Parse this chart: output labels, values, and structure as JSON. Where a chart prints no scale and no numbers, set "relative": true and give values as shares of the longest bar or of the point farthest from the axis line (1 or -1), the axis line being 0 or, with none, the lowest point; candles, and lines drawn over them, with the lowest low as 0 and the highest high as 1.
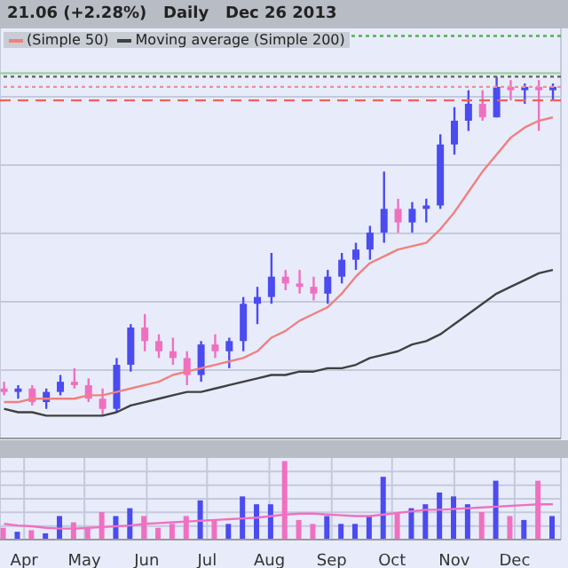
{
  "chart_data": [
    {
      "type": "candlestick",
      "title": "21.06 (+2.28%)   Daily   Dec 26 2013",
      "relative": true,
      "legend": "top left",
      "grid": true,
      "tick_labels": false,
      "xlim": [
        "2013-03-20",
        "2013-12-24"
      ],
      "xticks": [
        {
          "value": "2013-04-01",
          "label": null
        },
        {
          "value": "2013-05-01",
          "label": null
        },
        {
          "value": "2013-06-01",
          "label": null
        },
        {
          "value": "2013-07-01",
          "label": null
        },
        {
          "value": "2013-08-01",
          "label": null
        },
        {
          "value": "2013-09-01",
          "label": null
        },
        {
          "value": "2013-10-01",
          "label": null
        },
        {
          "value": "2013-11-01",
          "label": null
        },
        {
          "value": "2013-12-01",
          "label": null
        }
      ],
      "x": [
        "2013-03-22",
        "2013-03-29",
        "2013-04-05",
        "2013-04-12",
        "2013-04-19",
        "2013-04-26",
        "2013-05-03",
        "2013-05-10",
        "2013-05-17",
        "2013-05-24",
        "2013-05-31",
        "2013-06-07",
        "2013-06-14",
        "2013-06-21",
        "2013-06-28",
        "2013-07-05",
        "2013-07-12",
        "2013-07-19",
        "2013-07-26",
        "2013-08-02",
        "2013-08-09",
        "2013-08-16",
        "2013-08-23",
        "2013-08-30",
        "2013-09-06",
        "2013-09-13",
        "2013-09-20",
        "2013-09-27",
        "2013-10-04",
        "2013-10-11",
        "2013-10-18",
        "2013-10-25",
        "2013-11-01",
        "2013-11-08",
        "2013-11-15",
        "2013-11-22",
        "2013-11-29",
        "2013-12-06",
        "2013-12-13",
        "2013-12-20"
      ],
      "ohlc": [
        [
          0.08,
          0.1,
          0.06,
          0.07
        ],
        [
          0.07,
          0.09,
          0.05,
          0.08
        ],
        [
          0.08,
          0.09,
          0.03,
          0.04
        ],
        [
          0.04,
          0.08,
          0.02,
          0.07
        ],
        [
          0.07,
          0.12,
          0.06,
          0.1
        ],
        [
          0.1,
          0.14,
          0.08,
          0.09
        ],
        [
          0.09,
          0.11,
          0.04,
          0.05
        ],
        [
          0.05,
          0.08,
          0,
          0.02
        ],
        [
          0.02,
          0.17,
          0.01,
          0.15
        ],
        [
          0.15,
          0.27,
          0.13,
          0.26
        ],
        [
          0.26,
          0.3,
          0.19,
          0.22
        ],
        [
          0.22,
          0.24,
          0.17,
          0.19
        ],
        [
          0.19,
          0.23,
          0.15,
          0.17
        ],
        [
          0.17,
          0.19,
          0.09,
          0.12
        ],
        [
          0.12,
          0.22,
          0.1,
          0.21
        ],
        [
          0.21,
          0.24,
          0.17,
          0.19
        ],
        [
          0.19,
          0.23,
          0.14,
          0.22
        ],
        [
          0.22,
          0.35,
          0.19,
          0.33
        ],
        [
          0.33,
          0.38,
          0.27,
          0.35
        ],
        [
          0.35,
          0.48,
          0.33,
          0.41
        ],
        [
          0.41,
          0.43,
          0.37,
          0.39
        ],
        [
          0.39,
          0.43,
          0.36,
          0.38
        ],
        [
          0.38,
          0.41,
          0.34,
          0.36
        ],
        [
          0.36,
          0.43,
          0.33,
          0.41
        ],
        [
          0.41,
          0.48,
          0.39,
          0.46
        ],
        [
          0.46,
          0.51,
          0.43,
          0.49
        ],
        [
          0.49,
          0.56,
          0.46,
          0.54
        ],
        [
          0.54,
          0.72,
          0.51,
          0.61
        ],
        [
          0.61,
          0.64,
          0.54,
          0.57
        ],
        [
          0.57,
          0.63,
          0.54,
          0.61
        ],
        [
          0.61,
          0.64,
          0.57,
          0.62
        ],
        [
          0.62,
          0.83,
          0.61,
          0.8
        ],
        [
          0.8,
          0.91,
          0.77,
          0.87
        ],
        [
          0.87,
          0.96,
          0.84,
          0.92
        ],
        [
          0.92,
          0.96,
          0.87,
          0.88
        ],
        [
          0.88,
          1,
          0.88,
          0.97
        ],
        [
          0.97,
          0.99,
          0.93,
          0.96
        ],
        [
          0.96,
          0.98,
          0.92,
          0.97
        ],
        [
          0.97,
          0.99,
          0.84,
          0.96
        ],
        [
          0.96,
          0.98,
          0.93,
          0.97
        ]
      ],
      "colors": [
        "#f070c0",
        "#4b4bf0",
        "#f070c0",
        "#4b4bf0",
        "#4b4bf0",
        "#f070c0",
        "#f070c0",
        "#f070c0",
        "#4b4bf0",
        "#4b4bf0",
        "#f070c0",
        "#f070c0",
        "#f070c0",
        "#f070c0",
        "#4b4bf0",
        "#f070c0",
        "#4b4bf0",
        "#4b4bf0",
        "#4b4bf0",
        "#4b4bf0",
        "#f070c0",
        "#f070c0",
        "#f070c0",
        "#4b4bf0",
        "#4b4bf0",
        "#4b4bf0",
        "#4b4bf0",
        "#4b4bf0",
        "#f070c0",
        "#4b4bf0",
        "#4b4bf0",
        "#4b4bf0",
        "#4b4bf0",
        "#4b4bf0",
        "#f070c0",
        "#4b4bf0",
        "#f070c0",
        "#4b4bf0",
        "#f070c0",
        "#4b4bf0"
      ],
      "series": [
        {
          "type": "line",
          "name": "(Simple 50)",
          "color": "#f08080",
          "values": [
            0.04,
            0.04,
            0.05,
            0.05,
            0.05,
            0.05,
            0.06,
            0.06,
            0.07,
            0.08,
            0.09,
            0.1,
            0.12,
            0.13,
            0.14,
            0.15,
            0.16,
            0.17,
            0.19,
            0.23,
            0.25,
            0.28,
            0.3,
            0.32,
            0.36,
            0.41,
            0.45,
            0.47,
            0.49,
            0.5,
            0.51,
            0.55,
            0.6,
            0.66,
            0.72,
            0.77,
            0.82,
            0.85,
            0.87,
            0.88
          ]
        },
        {
          "type": "line",
          "name": "Moving average (Simple 200)",
          "color": "#404040",
          "values": [
            0.02,
            0.01,
            0.01,
            0,
            0,
            0,
            0,
            0,
            0.01,
            0.03,
            0.04,
            0.05,
            0.06,
            0.07,
            0.07,
            0.08,
            0.09,
            0.1,
            0.11,
            0.12,
            0.12,
            0.13,
            0.13,
            0.14,
            0.14,
            0.15,
            0.17,
            0.18,
            0.19,
            0.21,
            0.22,
            0.24,
            0.27,
            0.3,
            0.33,
            0.36,
            0.38,
            0.4,
            0.42,
            0.43
          ]
        }
      ],
      "ref_lines": [
        {
          "axis": "y",
          "value": 1.12,
          "color": "#50b050",
          "line_style": "dotted"
        },
        {
          "axis": "y",
          "value": 1.01,
          "color": "#a0d0a0",
          "line_style": "solid"
        },
        {
          "axis": "y",
          "value": 1.0,
          "color": "#606060",
          "line_style": "dotted"
        },
        {
          "axis": "y",
          "value": 0.97,
          "color": "#f09090",
          "line_style": "dotted"
        },
        {
          "axis": "y",
          "value": 0.93,
          "color": "#f06060",
          "line_style": "dashed"
        }
      ]
    },
    {
      "type": "bar",
      "relative": true,
      "grid": true,
      "tick_labels": "x",
      "xlim": [
        "2013-03-20",
        "2013-12-24"
      ],
      "xticks": [
        {
          "value": "2013-04-01",
          "label": "Apr"
        },
        {
          "value": "2013-05-01",
          "label": "May"
        },
        {
          "value": "2013-06-01",
          "label": "Jun"
        },
        {
          "value": "2013-07-01",
          "label": "Jul"
        },
        {
          "value": "2013-08-01",
          "label": "Aug"
        },
        {
          "value": "2013-09-01",
          "label": "Sep"
        },
        {
          "value": "2013-10-01",
          "label": "Oct"
        },
        {
          "value": "2013-11-01",
          "label": "Nov"
        },
        {
          "value": "2013-12-01",
          "label": "Dec"
        }
      ],
      "x": [
        "2013-03-22",
        "2013-03-29",
        "2013-04-05",
        "2013-04-12",
        "2013-04-19",
        "2013-04-26",
        "2013-05-03",
        "2013-05-10",
        "2013-05-17",
        "2013-05-24",
        "2013-05-31",
        "2013-06-07",
        "2013-06-14",
        "2013-06-21",
        "2013-06-28",
        "2013-07-05",
        "2013-07-12",
        "2013-07-19",
        "2013-07-26",
        "2013-08-02",
        "2013-08-09",
        "2013-08-16",
        "2013-08-23",
        "2013-08-30",
        "2013-09-06",
        "2013-09-13",
        "2013-09-20",
        "2013-09-27",
        "2013-10-04",
        "2013-10-11",
        "2013-10-18",
        "2013-10-25",
        "2013-11-01",
        "2013-11-08",
        "2013-11-15",
        "2013-11-22",
        "2013-11-29",
        "2013-12-06",
        "2013-12-13",
        "2013-12-20"
      ],
      "values": [
        0.15,
        0.1,
        0.12,
        0.08,
        0.3,
        0.22,
        0.15,
        0.35,
        0.3,
        0.4,
        0.3,
        0.15,
        0.2,
        0.3,
        0.5,
        0.25,
        0.2,
        0.55,
        0.45,
        0.45,
        1,
        0.25,
        0.2,
        0.3,
        0.2,
        0.2,
        0.3,
        0.8,
        0.35,
        0.4,
        0.45,
        0.6,
        0.55,
        0.45,
        0.35,
        0.75,
        0.3,
        0.25,
        0.75,
        0.3
      ],
      "colors": [
        "#f070c0",
        "#4b4bf0",
        "#f070c0",
        "#4b4bf0",
        "#4b4bf0",
        "#f070c0",
        "#f070c0",
        "#f070c0",
        "#4b4bf0",
        "#4b4bf0",
        "#f070c0",
        "#f070c0",
        "#f070c0",
        "#f070c0",
        "#4b4bf0",
        "#f070c0",
        "#4b4bf0",
        "#4b4bf0",
        "#4b4bf0",
        "#4b4bf0",
        "#f070c0",
        "#f070c0",
        "#f070c0",
        "#4b4bf0",
        "#4b4bf0",
        "#4b4bf0",
        "#4b4bf0",
        "#4b4bf0",
        "#f070c0",
        "#4b4bf0",
        "#4b4bf0",
        "#4b4bf0",
        "#4b4bf0",
        "#4b4bf0",
        "#f070c0",
        "#4b4bf0",
        "#f070c0",
        "#4b4bf0",
        "#f070c0",
        "#4b4bf0"
      ],
      "series": [
        {
          "type": "line",
          "color": "#f070c0",
          "values": [
            0.2,
            0.18,
            0.17,
            0.15,
            0.14,
            0.14,
            0.15,
            0.16,
            0.17,
            0.18,
            0.2,
            0.21,
            0.22,
            0.23,
            0.24,
            0.25,
            0.26,
            0.27,
            0.28,
            0.3,
            0.32,
            0.33,
            0.33,
            0.32,
            0.31,
            0.3,
            0.3,
            0.32,
            0.34,
            0.36,
            0.38,
            0.38,
            0.39,
            0.4,
            0.41,
            0.42,
            0.43,
            0.44,
            0.45,
            0.45
          ]
        }
      ]
    }
  ]
}
